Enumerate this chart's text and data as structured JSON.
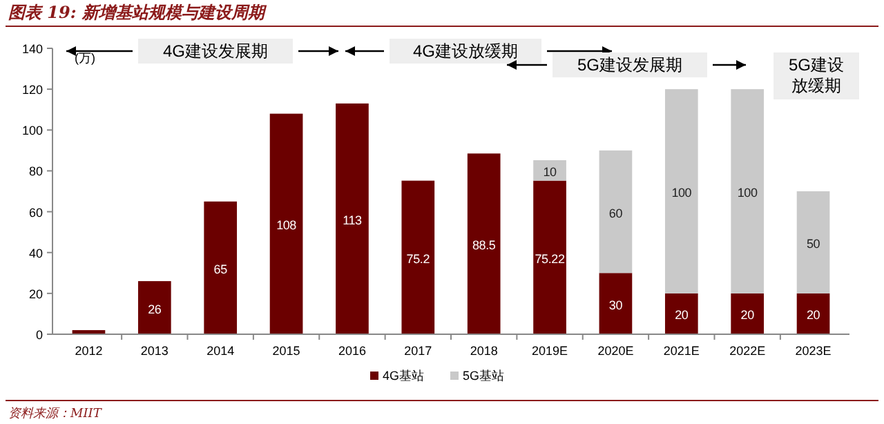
{
  "chart_data": {
    "type": "bar",
    "title": "图表 19: 新增基站规模与建设周期",
    "ylabel": "(万)",
    "stacked": true,
    "categories": [
      "2012",
      "2013",
      "2014",
      "2015",
      "2016",
      "2017",
      "2018",
      "2019E",
      "2020E",
      "2021E",
      "2022E",
      "2023E"
    ],
    "series": [
      {
        "name": "4G基站",
        "color": "#6b0000",
        "values": [
          2,
          26,
          65,
          108,
          113,
          75.2,
          88.5,
          75.22,
          30,
          20,
          20,
          20
        ],
        "value_labels": [
          null,
          "26",
          "65",
          "108",
          "113",
          "75.2",
          "88.5",
          "75.22",
          "30",
          "20",
          "20",
          "20"
        ]
      },
      {
        "name": "5G基站",
        "color": "#c9c9c9",
        "values": [
          null,
          null,
          null,
          null,
          null,
          null,
          null,
          10,
          60,
          100,
          100,
          50
        ],
        "value_labels": [
          null,
          null,
          null,
          null,
          null,
          null,
          null,
          "10",
          "60",
          "100",
          "100",
          "50"
        ]
      }
    ],
    "ylim": [
      0,
      140
    ],
    "yticks": [
      0,
      20,
      40,
      60,
      80,
      100,
      120,
      140
    ],
    "grid": false,
    "legend": "bottom",
    "annotations": [
      "4G建设发展期",
      "4G建设放缓期",
      "5G建设发展期",
      "5G建设放缓期",
      "资料来源：MIIT"
    ]
  }
}
